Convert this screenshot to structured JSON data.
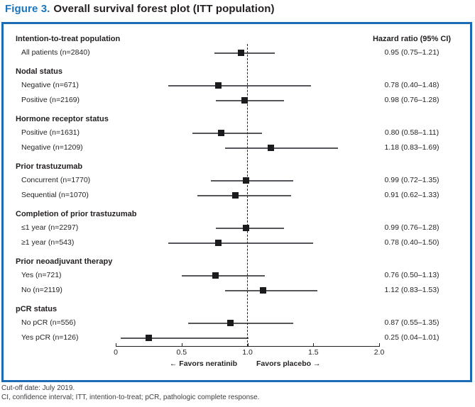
{
  "title": {
    "label": "Figure 3.",
    "text": "Overall survival forest plot (ITT population)"
  },
  "colors": {
    "accent_blue": "#1a75bc",
    "box_border": "#1c6bb5",
    "ci_line": "#55565a",
    "marker": "#1b1b1d",
    "text": "#231f20"
  },
  "chart_data": {
    "type": "scatter",
    "variant": "forest-plot",
    "hr_header": "Hazard ratio (95% CI)",
    "xlim": [
      0,
      2
    ],
    "reference_value": 1.0,
    "ticks": [
      {
        "value": 0,
        "label": "0"
      },
      {
        "value": 0.5,
        "label": "0.5"
      },
      {
        "value": 1.0,
        "label": "1.0"
      },
      {
        "value": 1.5,
        "label": "1.5"
      },
      {
        "value": 2.0,
        "label": "2.0"
      }
    ],
    "favors_left": "← Favors neratinib",
    "favors_right": "Favors placebo →",
    "groups": [
      {
        "header": "Intention-to-treat population",
        "items": [
          {
            "label": "All patients (n=2840)",
            "hr": 0.95,
            "lo": 0.75,
            "hi": 1.21,
            "hr_text": "0.95 (0.75–1.21)"
          }
        ]
      },
      {
        "header": "Nodal status",
        "items": [
          {
            "label": "Negative (n=671)",
            "hr": 0.78,
            "lo": 0.4,
            "hi": 1.48,
            "hr_text": "0.78 (0.40–1.48)"
          },
          {
            "label": "Positive (n=2169)",
            "hr": 0.98,
            "lo": 0.76,
            "hi": 1.28,
            "hr_text": "0.98 (0.76–1.28)"
          }
        ]
      },
      {
        "header": "Hormone receptor status",
        "items": [
          {
            "label": "Positive (n=1631)",
            "hr": 0.8,
            "lo": 0.58,
            "hi": 1.11,
            "hr_text": "0.80 (0.58–1.11)"
          },
          {
            "label": "Negative (n=1209)",
            "hr": 1.18,
            "lo": 0.83,
            "hi": 1.69,
            "hr_text": "1.18 (0.83–1.69)"
          }
        ]
      },
      {
        "header": "Prior trastuzumab",
        "items": [
          {
            "label": "Concurrent (n=1770)",
            "hr": 0.99,
            "lo": 0.72,
            "hi": 1.35,
            "hr_text": "0.99 (0.72–1.35)"
          },
          {
            "label": "Sequential (n=1070)",
            "hr": 0.91,
            "lo": 0.62,
            "hi": 1.33,
            "hr_text": "0.91 (0.62–1.33)"
          }
        ]
      },
      {
        "header": "Completion of prior trastuzumab",
        "items": [
          {
            "label": "≤1 year (n=2297)",
            "hr": 0.99,
            "lo": 0.76,
            "hi": 1.28,
            "hr_text": "0.99 (0.76–1.28)"
          },
          {
            "label": "≥1 year (n=543)",
            "hr": 0.78,
            "lo": 0.4,
            "hi": 1.5,
            "hr_text": "0.78 (0.40–1.50)"
          }
        ]
      },
      {
        "header": "Prior neoadjuvant therapy",
        "items": [
          {
            "label": "Yes (n=721)",
            "hr": 0.76,
            "lo": 0.5,
            "hi": 1.13,
            "hr_text": "0.76 (0.50–1.13)"
          },
          {
            "label": "No (n=2119)",
            "hr": 1.12,
            "lo": 0.83,
            "hi": 1.53,
            "hr_text": "1.12 (0.83–1.53)"
          }
        ]
      },
      {
        "header": "pCR status",
        "items": [
          {
            "label": "No pCR (n=556)",
            "hr": 0.87,
            "lo": 0.55,
            "hi": 1.35,
            "hr_text": "0.87 (0.55–1.35)"
          },
          {
            "label": "Yes pCR (n=126)",
            "hr": 0.25,
            "lo": 0.04,
            "hi": 1.01,
            "hr_text": "0.25 (0.04–1.01)"
          }
        ]
      }
    ]
  },
  "footnotes": [
    "Cut-off date: July 2019.",
    "CI, confidence interval; ITT, intention-to-treat; pCR, pathologic complete response."
  ]
}
